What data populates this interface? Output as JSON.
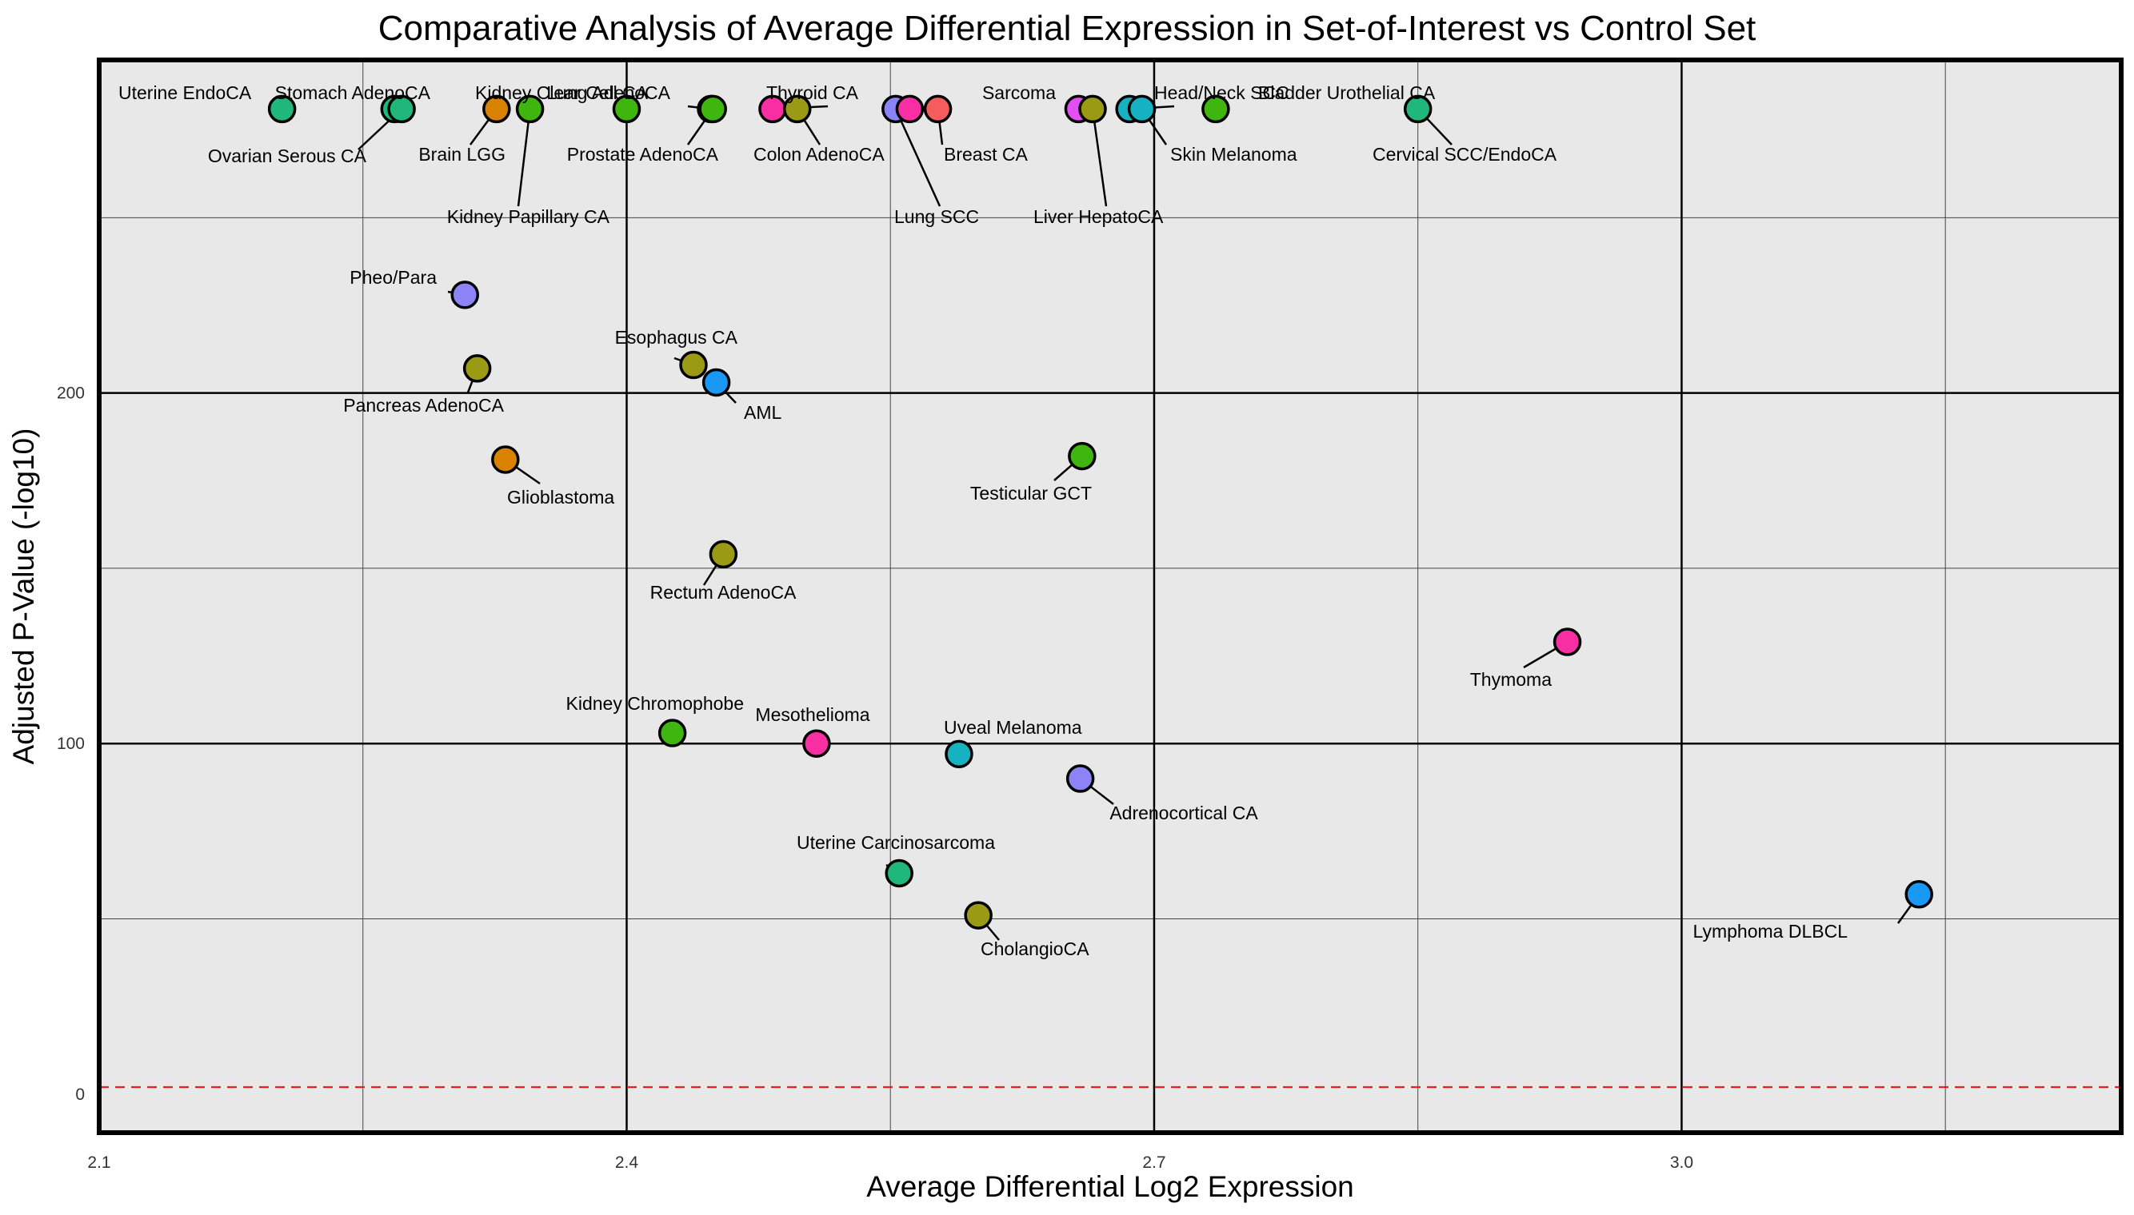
{
  "chart_data": {
    "type": "scatter",
    "title": "Comparative Analysis of Average Differential Expression in Set-of-Interest vs Control Set",
    "xlabel": "Average Differential Log2 Expression",
    "ylabel": "Adjusted P-Value (-log10)",
    "xlim": [
      2.1,
      3.25
    ],
    "ylim": [
      -11,
      295
    ],
    "xticks": [
      2.1,
      2.4,
      2.7,
      3.0
    ],
    "xtick_labels": [
      "2.1",
      "2.4",
      "2.7",
      "3.0"
    ],
    "yticks": [
      0,
      100,
      200
    ],
    "ytick_labels": [
      "0",
      "100",
      "200"
    ],
    "major_gridlines_x": [
      2.4,
      2.7,
      3.0
    ],
    "minor_gridlines_x": [
      2.25,
      2.55,
      2.85,
      3.15
    ],
    "major_gridlines_y": [
      100,
      200
    ],
    "minor_gridlines_y": [
      50,
      150,
      250
    ],
    "grid": true,
    "threshold_line": {
      "y": 2,
      "color": "#e8201e",
      "style": "dashed"
    },
    "points": [
      {
        "label": "Uterine EndoCA",
        "x": 2.204,
        "y": 281,
        "color": "#1fb87a"
      },
      {
        "label": "Stomach AdenoCA",
        "x": 2.268,
        "y": 281,
        "color": "#1fb87a"
      },
      {
        "label": "Ovarian Serous CA",
        "x": 2.272,
        "y": 281,
        "color": "#1fb87a"
      },
      {
        "label": "Brain LGG",
        "x": 2.326,
        "y": 281,
        "color": "#d98200"
      },
      {
        "label": "Kidney Papillary CA",
        "x": 2.345,
        "y": 281,
        "color": "#3fb50f"
      },
      {
        "label": "Kidney Clear Cell CA",
        "x": 2.4,
        "y": 281,
        "color": "#3fb50f"
      },
      {
        "label": "Lung AdenoCA",
        "x": 2.448,
        "y": 281,
        "color": "#3fb50f"
      },
      {
        "label": "Prostate AdenoCA",
        "x": 2.449,
        "y": 281,
        "color": "#3fb50f"
      },
      {
        "label": "Thyroid CA",
        "x": 2.483,
        "y": 281,
        "color": "#f72fa3"
      },
      {
        "label": "Colon AdenoCA",
        "x": 2.497,
        "y": 281,
        "color": "#9a9a15"
      },
      {
        "label": "Lung SCC",
        "x": 2.553,
        "y": 281,
        "color": "#8c83f6"
      },
      {
        "label": "Breast CA",
        "x": 2.577,
        "y": 281,
        "color": "#f55c5c"
      },
      {
        "label": "Lung SCC",
        "x": 2.561,
        "y": 281,
        "color": "#f72fa3"
      },
      {
        "label": "Sarcoma",
        "x": 2.657,
        "y": 281,
        "color": "#e24ff2"
      },
      {
        "label": "Liver HepatoCA",
        "x": 2.665,
        "y": 281,
        "color": "#9a9a15"
      },
      {
        "label": "Head/Neck SCC",
        "x": 2.686,
        "y": 281,
        "color": "#17b2c2"
      },
      {
        "label": "Skin Melanoma",
        "x": 2.693,
        "y": 281,
        "color": "#17b2c2"
      },
      {
        "label": "Bladder Urothelial CA",
        "x": 2.735,
        "y": 281,
        "color": "#3fb50f"
      },
      {
        "label": "Cervical SCC/EndoCA",
        "x": 2.85,
        "y": 281,
        "color": "#1fb87a"
      },
      {
        "label": "Pheo/Para",
        "x": 2.308,
        "y": 228,
        "color": "#8c83f6"
      },
      {
        "label": "Pancreas AdenoCA",
        "x": 2.315,
        "y": 207,
        "color": "#9a9a15"
      },
      {
        "label": "Esophagus CA",
        "x": 2.438,
        "y": 208,
        "color": "#9a9a15"
      },
      {
        "label": "AML",
        "x": 2.451,
        "y": 203,
        "color": "#1a98f5"
      },
      {
        "label": "Glioblastoma",
        "x": 2.331,
        "y": 181,
        "color": "#d98200"
      },
      {
        "label": "Testicular GCT",
        "x": 2.659,
        "y": 182,
        "color": "#3fb50f"
      },
      {
        "label": "Rectum AdenoCA",
        "x": 2.455,
        "y": 154,
        "color": "#9a9a15"
      },
      {
        "label": "Thymoma",
        "x": 2.935,
        "y": 129,
        "color": "#f72fa3"
      },
      {
        "label": "Kidney Chromophobe",
        "x": 2.426,
        "y": 103,
        "color": "#3fb50f"
      },
      {
        "label": "Mesothelioma",
        "x": 2.508,
        "y": 100,
        "color": "#f72fa3"
      },
      {
        "label": "Uveal Melanoma",
        "x": 2.589,
        "y": 97,
        "color": "#17b2c2"
      },
      {
        "label": "Adrenocortical CA",
        "x": 2.658,
        "y": 90,
        "color": "#8c83f6"
      },
      {
        "label": "Uterine Carcinosarcoma",
        "x": 2.555,
        "y": 63,
        "color": "#1fb87a"
      },
      {
        "label": "CholangioCA",
        "x": 2.6,
        "y": 51,
        "color": "#9a9a15"
      },
      {
        "label": "Lymphoma DLBCL",
        "x": 3.135,
        "y": 57,
        "color": "#1a98f5"
      }
    ]
  }
}
